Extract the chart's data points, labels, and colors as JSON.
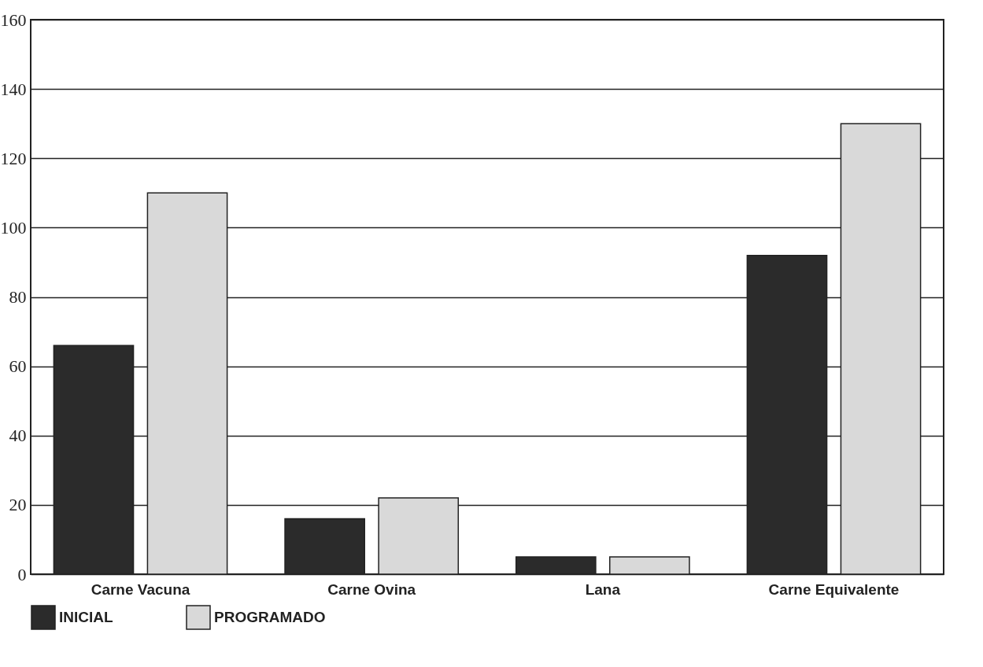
{
  "chart_data": {
    "type": "bar",
    "categories": [
      "Carne Vacuna",
      "Carne Ovina",
      "Lana",
      "Carne Equivalente"
    ],
    "series": [
      {
        "name": "INICIAL",
        "color": "#2b2b2b",
        "values": [
          66,
          16,
          5,
          92
        ]
      },
      {
        "name": "PROGRAMADO",
        "color": "#d9d9d9",
        "values": [
          110,
          22,
          5,
          130
        ]
      }
    ],
    "ylim": [
      0,
      160
    ],
    "yticks": [
      0,
      20,
      40,
      60,
      80,
      100,
      120,
      140,
      160
    ],
    "grid": "y",
    "legend": "bottom"
  }
}
